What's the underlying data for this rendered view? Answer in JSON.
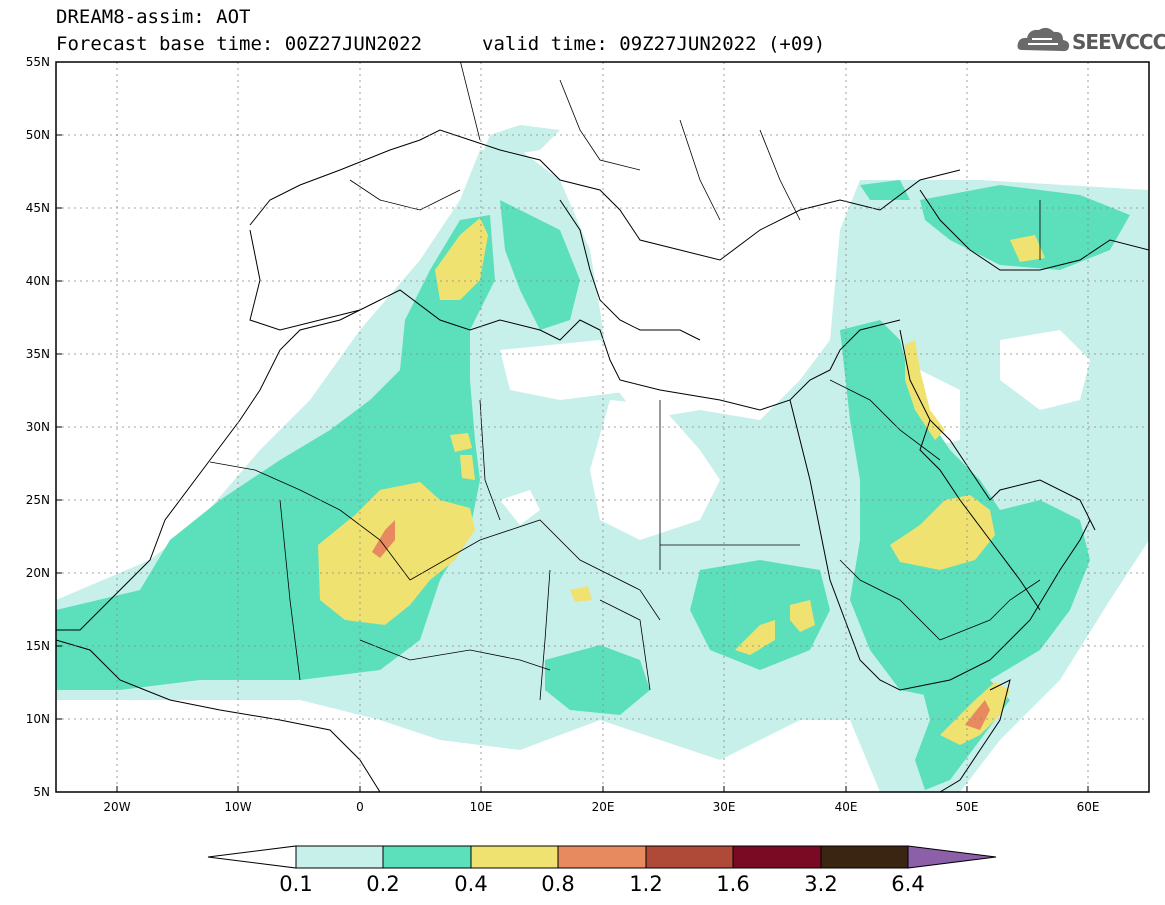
{
  "header": {
    "title": "DREAM8-assim: AOT",
    "base_time": "Forecast base time: 00Z27JUN2022",
    "valid_time": "valid time: 09Z27JUN2022 (+09)"
  },
  "logo": {
    "text": "SEEVCCC",
    "icon": "cloud-icon"
  },
  "map": {
    "lat_labels": [
      "55N",
      "50N",
      "45N",
      "40N",
      "35N",
      "30N",
      "25N",
      "20N",
      "15N",
      "10N",
      "5N"
    ],
    "lon_labels": [
      "20W",
      "10W",
      "0",
      "10E",
      "20E",
      "30E",
      "40E",
      "50E",
      "60E"
    ]
  },
  "colorbar": {
    "labels": [
      "0.1",
      "0.2",
      "0.4",
      "0.8",
      "1.2",
      "1.6",
      "3.2",
      "6.4"
    ],
    "colors": [
      "#ffffff",
      "#c7f0ea",
      "#5ce0bc",
      "#f0e270",
      "#e88a60",
      "#b04a38",
      "#7a0a24",
      "#3a2412",
      "#8c60a8"
    ]
  },
  "colors": {
    "c01": "#c7f0ea",
    "c02": "#5ce0bc",
    "c04": "#f0e270",
    "c08": "#e88a60"
  }
}
